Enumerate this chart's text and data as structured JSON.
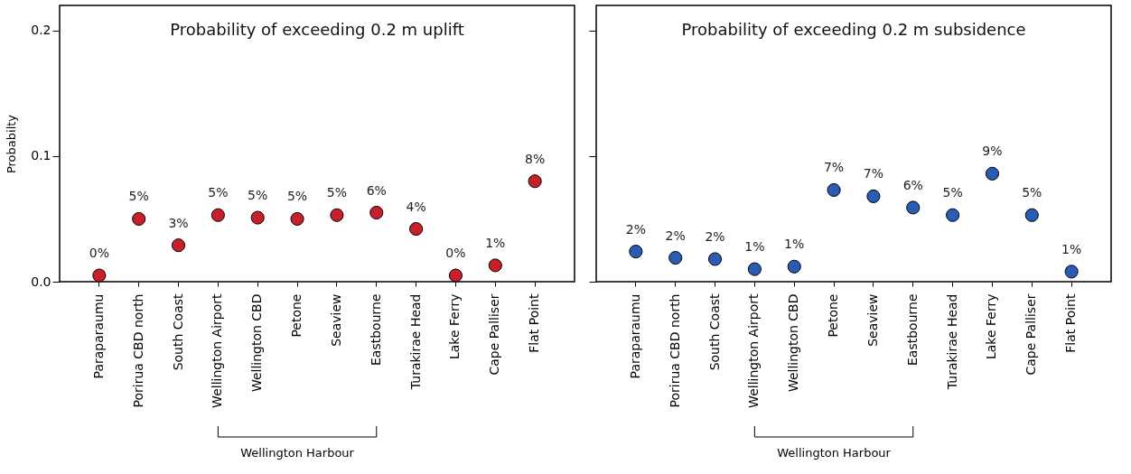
{
  "chart_data": [
    {
      "type": "scatter",
      "title": "Probability of exceeding 0.2 m uplift",
      "ylabel": "Probabilty",
      "categories": [
        "Paraparaumu",
        "Porirua CBD north",
        "South Coast",
        "Wellington Airport",
        "Wellington CBD",
        "Petone",
        "Seaview",
        "Eastbourne",
        "Turakirae Head",
        "Lake Ferry",
        "Cape Palliser",
        "Flat Point"
      ],
      "series": [
        {
          "color": "#c8202a",
          "values": [
            0.005,
            0.05,
            0.029,
            0.053,
            0.051,
            0.05,
            0.053,
            0.055,
            0.042,
            0.005,
            0.013,
            0.08
          ],
          "value_labels": [
            "0%",
            "5%",
            "3%",
            "5%",
            "5%",
            "5%",
            "5%",
            "6%",
            "4%",
            "0%",
            "1%",
            "8%"
          ]
        }
      ],
      "ylim": [
        0,
        0.22
      ],
      "yticks": [
        {
          "value": 0,
          "label": "0.0"
        },
        0.1,
        0.2
      ],
      "grid": false,
      "marker": "circle",
      "annotations": [
        "Wellington Harbour"
      ]
    },
    {
      "type": "scatter",
      "title": "Probability of exceeding 0.2 m subsidence",
      "categories": [
        "Paraparaumu",
        "Porirua CBD north",
        "South Coast",
        "Wellington Airport",
        "Wellington CBD",
        "Petone",
        "Seaview",
        "Eastbourne",
        "Turakirae Head",
        "Lake Ferry",
        "Cape Palliser",
        "Flat Point"
      ],
      "series": [
        {
          "color": "#2a5cb4",
          "values": [
            0.024,
            0.019,
            0.018,
            0.01,
            0.012,
            0.073,
            0.068,
            0.059,
            0.053,
            0.086,
            0.053,
            0.008
          ],
          "value_labels": [
            "2%",
            "2%",
            "2%",
            "1%",
            "1%",
            "7%",
            "7%",
            "6%",
            "5%",
            "9%",
            "5%",
            "1%"
          ]
        }
      ],
      "ylim": [
        0,
        0.22
      ],
      "yticks": [
        0,
        0.1,
        0.2
      ],
      "grid": false,
      "marker": "circle",
      "tick_labels": "x",
      "annotations": [
        "Wellington Harbour"
      ]
    }
  ]
}
